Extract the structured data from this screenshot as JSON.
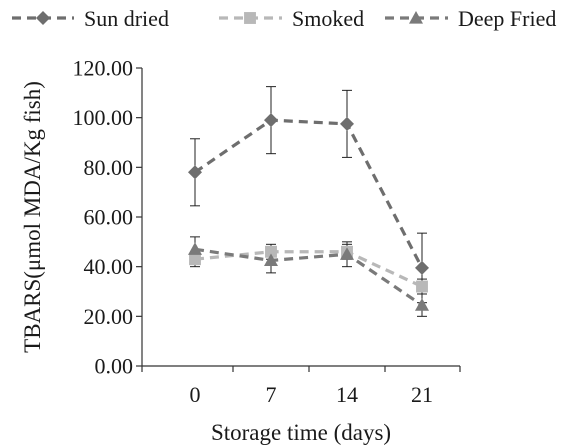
{
  "chart_data": {
    "type": "line",
    "title": "",
    "xlabel": "Storage time (days)",
    "ylabel": "TBARS(μmol MDA/Kg fish)",
    "categories": [
      "0",
      "7",
      "14",
      "21"
    ],
    "ylim": [
      0,
      120
    ],
    "yticks": [
      "0.00",
      "20.00",
      "40.00",
      "60.00",
      "80.00",
      "100.00",
      "120.00"
    ],
    "grid": false,
    "legend_position": "top",
    "series": [
      {
        "name": "Sun dried",
        "values": [
          78,
          99,
          97.5,
          39.5
        ],
        "errors": [
          13.5,
          13.5,
          13.5,
          14
        ],
        "color": "#6e6e6e",
        "marker": "diamond"
      },
      {
        "name": "Smoked",
        "values": [
          43,
          46,
          46,
          32
        ],
        "errors": [
          3,
          3,
          3,
          3
        ],
        "color": "#b8b8b8",
        "marker": "square"
      },
      {
        "name": "Deep Fried",
        "values": [
          47,
          42.5,
          45,
          24.5
        ],
        "errors": [
          5,
          5,
          5,
          4.5
        ],
        "color": "#7a7a7a",
        "marker": "triangle"
      }
    ]
  }
}
